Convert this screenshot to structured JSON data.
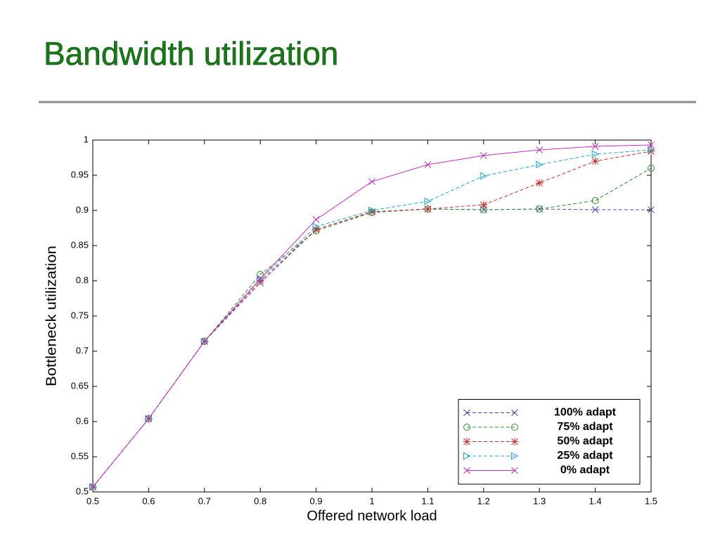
{
  "title": "Bandwidth utilization",
  "chart_data": {
    "type": "line",
    "xlabel": "Offered network load",
    "ylabel": "Bottleneck utilization",
    "x": [
      0.5,
      0.6,
      0.7,
      0.8,
      0.9,
      1.0,
      1.1,
      1.2,
      1.3,
      1.4,
      1.5
    ],
    "xlim": [
      0.5,
      1.5
    ],
    "xticks": [
      0.5,
      0.6,
      0.7,
      0.8,
      0.9,
      1,
      1.1,
      1.2,
      1.3,
      1.4,
      1.5
    ],
    "ylim": [
      0.5,
      1
    ],
    "yticks": [
      0.5,
      0.55,
      0.6,
      0.65,
      0.7,
      0.75,
      0.8,
      0.85,
      0.9,
      0.95,
      1
    ],
    "grid": false,
    "legend": "lower right",
    "series": [
      {
        "name": "100% adapt",
        "color": "#4b4ba8",
        "marker": "x",
        "dashed": true,
        "values": [
          0.507,
          0.604,
          0.714,
          0.797,
          0.873,
          0.898,
          0.902,
          0.901,
          0.902,
          0.901,
          0.901
        ]
      },
      {
        "name": "75% adapt",
        "color": "#2e8b2e",
        "marker": "o",
        "dashed": true,
        "values": [
          0.507,
          0.604,
          0.714,
          0.809,
          0.871,
          0.897,
          0.902,
          0.901,
          0.902,
          0.914,
          0.96
        ]
      },
      {
        "name": "50% adapt",
        "color": "#c03030",
        "marker": "*",
        "dashed": true,
        "values": [
          0.507,
          0.604,
          0.714,
          0.8,
          0.873,
          0.898,
          0.902,
          0.908,
          0.939,
          0.97,
          0.984
        ]
      },
      {
        "name": "25% adapt",
        "color": "#20a8c0",
        "marker": ">",
        "dashed": true,
        "values": [
          0.507,
          0.604,
          0.714,
          0.803,
          0.877,
          0.9,
          0.913,
          0.949,
          0.965,
          0.98,
          0.986
        ]
      },
      {
        "name": "0% adapt",
        "color": "#c030c0",
        "marker": "x",
        "dashed": false,
        "values": [
          0.507,
          0.604,
          0.714,
          0.803,
          0.887,
          0.941,
          0.965,
          0.978,
          0.986,
          0.991,
          0.993
        ]
      }
    ]
  }
}
